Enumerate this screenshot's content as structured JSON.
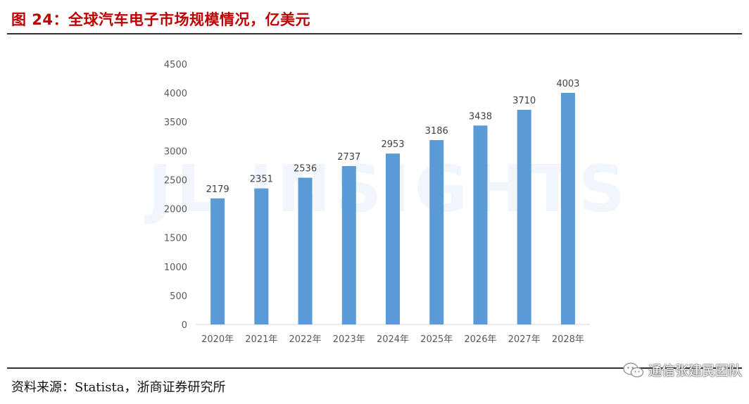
{
  "header": {
    "title": "图 24：全球汽车电子市场规模情况，亿美元"
  },
  "footer": {
    "source": "资料来源：Statista，浙商证券研究所",
    "brand": "通信张建民团队"
  },
  "watermark": "JL INSIGHTS",
  "colors": {
    "bar": "#5b9bd5",
    "title": "#c00000"
  },
  "chart_data": {
    "type": "bar",
    "title": "全球汽车电子市场规模情况，亿美元",
    "categories": [
      "2020年",
      "2021年",
      "2022年",
      "2023年",
      "2024年",
      "2025年",
      "2026年",
      "2027年",
      "2028年"
    ],
    "values": [
      2179,
      2351,
      2536,
      2737,
      2953,
      3186,
      3438,
      3710,
      4003
    ],
    "data_labels": [
      "2179",
      "2351",
      "2536",
      "2737",
      "2953",
      "3186",
      "3438",
      "3710",
      "4003"
    ],
    "yticks": [
      "0",
      "500",
      "1000",
      "1500",
      "2000",
      "2500",
      "3000",
      "3500",
      "4000",
      "4500"
    ],
    "ylim": [
      0,
      4500
    ],
    "xlabel": "",
    "ylabel": "",
    "grid": false,
    "legend": "none"
  }
}
